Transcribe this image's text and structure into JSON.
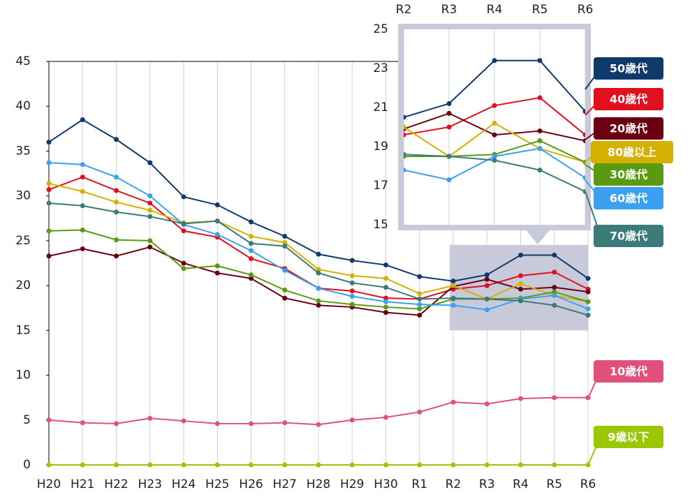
{
  "chart_data": {
    "type": "line",
    "categories": [
      "H20",
      "H21",
      "H22",
      "H23",
      "H24",
      "H25",
      "H26",
      "H27",
      "H28",
      "H29",
      "H30",
      "R1",
      "R2",
      "R3",
      "R4",
      "R5",
      "R6"
    ],
    "ylim": [
      0,
      45
    ],
    "yticks": [
      0,
      5,
      10,
      15,
      20,
      25,
      30,
      35,
      40,
      45
    ],
    "grid": true,
    "series": [
      {
        "name": "50歳代",
        "color": "#0d3a6b",
        "values": [
          36.0,
          38.5,
          36.3,
          33.7,
          29.9,
          29.0,
          27.1,
          25.5,
          23.5,
          22.8,
          22.3,
          21.0,
          20.5,
          21.2,
          23.4,
          23.4,
          20.8
        ]
      },
      {
        "name": "40歳代",
        "color": "#e0101e",
        "values": [
          30.7,
          32.1,
          30.6,
          29.2,
          26.1,
          25.4,
          23.0,
          21.9,
          19.7,
          19.4,
          18.6,
          18.5,
          19.6,
          20.0,
          21.1,
          21.5,
          19.6
        ]
      },
      {
        "name": "20歳代",
        "color": "#6b0010",
        "values": [
          23.3,
          24.1,
          23.3,
          24.3,
          22.5,
          21.4,
          20.8,
          18.6,
          17.8,
          17.6,
          17.0,
          16.7,
          19.9,
          20.7,
          19.6,
          19.8,
          19.3
        ]
      },
      {
        "name": "80歳以上",
        "color": "#d4b000",
        "values": [
          31.4,
          30.5,
          29.3,
          28.4,
          27.0,
          27.2,
          25.5,
          24.8,
          21.8,
          21.1,
          20.8,
          19.1,
          20.0,
          18.5,
          20.2,
          18.9,
          18.2
        ]
      },
      {
        "name": "30歳代",
        "color": "#5a9a10",
        "values": [
          26.1,
          26.2,
          25.1,
          25.0,
          21.9,
          22.2,
          21.2,
          19.5,
          18.3,
          17.9,
          17.6,
          17.4,
          18.5,
          18.5,
          18.6,
          19.3,
          18.2
        ]
      },
      {
        "name": "60歳代",
        "color": "#3ba0f0",
        "values": [
          33.7,
          33.5,
          32.1,
          30.0,
          26.8,
          25.7,
          23.9,
          21.7,
          19.7,
          18.8,
          18.2,
          17.9,
          17.8,
          17.3,
          18.5,
          18.9,
          17.4
        ]
      },
      {
        "name": "70歳代",
        "color": "#3a7a78",
        "values": [
          29.2,
          28.9,
          28.2,
          27.7,
          26.9,
          27.2,
          24.7,
          24.4,
          21.4,
          20.3,
          19.8,
          18.5,
          18.6,
          18.5,
          18.3,
          17.8,
          16.7
        ]
      },
      {
        "name": "10歳代",
        "color": "#e0507a",
        "values": [
          5.0,
          4.7,
          4.6,
          5.2,
          4.9,
          4.6,
          4.6,
          4.7,
          4.5,
          5.0,
          5.3,
          5.9,
          7.0,
          6.8,
          7.4,
          7.5,
          7.5
        ]
      },
      {
        "name": "9歳以下",
        "color": "#9ac800",
        "values": [
          0,
          0,
          0,
          0,
          0,
          0,
          0,
          0,
          0,
          0,
          0,
          0,
          0,
          0,
          0,
          0,
          0
        ]
      }
    ],
    "inset": {
      "categories": [
        "R2",
        "R3",
        "R4",
        "R5",
        "R6"
      ],
      "ylim": [
        15,
        25
      ],
      "yticks": [
        15,
        17,
        19,
        21,
        23,
        25
      ]
    }
  }
}
